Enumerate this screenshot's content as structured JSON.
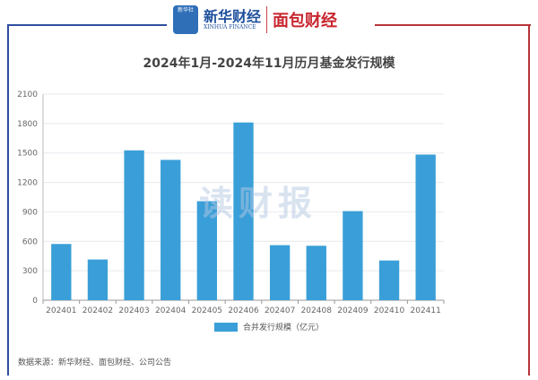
{
  "header": {
    "logo_xinhua": "新华财经",
    "logo_xinhua_en": "XINHUA FINANCE",
    "logo_app": "新华社",
    "logo_mianbao": "面包财经"
  },
  "watermark": "读财报",
  "source": "数据来源：新华财经、面包财经、公司公告",
  "colors": {
    "bar": "#3a9fd8",
    "frame_left": "#2f4f9f",
    "frame_right": "#b8333a"
  },
  "chart_data": {
    "type": "bar",
    "title": "2024年1月-2024年11月历月基金发行规模",
    "categories": [
      "202401",
      "202402",
      "202403",
      "202404",
      "202405",
      "202406",
      "202407",
      "202408",
      "202409",
      "202410",
      "202411"
    ],
    "series": [
      {
        "name": "合并发行规模（亿元）",
        "values": [
          573,
          415,
          1527,
          1430,
          1009,
          1811,
          561,
          555,
          908,
          405,
          1484
        ]
      }
    ],
    "yticks": [
      0,
      300,
      600,
      900,
      1200,
      1500,
      1800,
      2100
    ],
    "ylim": [
      0,
      2100
    ],
    "grid": true,
    "legend": "bottom"
  }
}
